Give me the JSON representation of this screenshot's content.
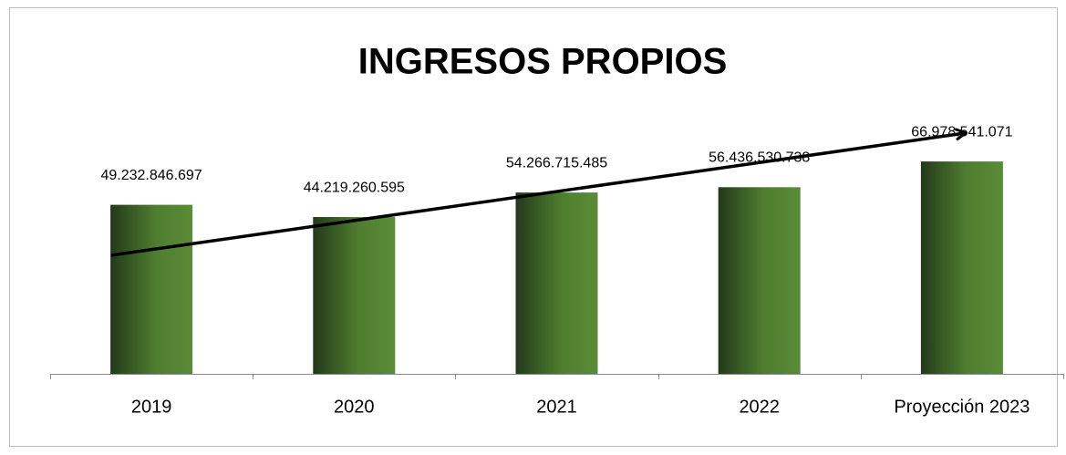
{
  "chart_data": {
    "type": "bar",
    "title": "INGRESOS PROPIOS",
    "categories": [
      "2019",
      "2020",
      "2021",
      "2022",
      "Proyección 2023"
    ],
    "values": [
      49232846697,
      44219260595,
      54266715485,
      56436530738,
      66978541071
    ],
    "value_labels": [
      "49.232.846.697",
      "44.219.260.595",
      "54.266.715.485",
      "56.436.530.738",
      "66.978.541.071"
    ],
    "color": "#4a7a2c",
    "ylim": [
      -20000000000,
      70000000000
    ]
  }
}
